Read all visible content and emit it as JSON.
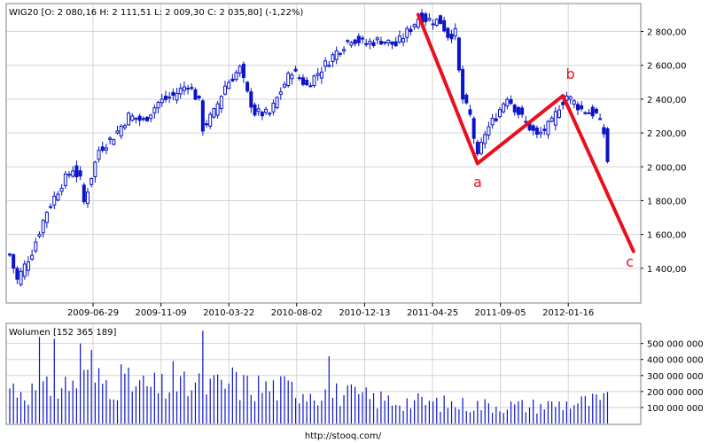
{
  "chart_data": [
    {
      "type": "candlestick",
      "title": "WIG20 [O: 2 080,16  H: 2 111,51  L: 2 009,30  C: 2 035,80] (-1,22%)",
      "ylim": [
        1200,
        2960
      ],
      "y_ticks": [
        1400,
        1600,
        1800,
        2000,
        2200,
        2400,
        2600,
        2800
      ],
      "y_tick_labels": [
        "1 400,00",
        "1 600,00",
        "1 800,00",
        "2 000,00",
        "2 200,00",
        "2 400,00",
        "2 600,00",
        "2 800,00"
      ],
      "x_tick_labels": [
        "2009-06-29",
        "2009-11-09",
        "2010-03-22",
        "2010-08-02",
        "2010-12-13",
        "2011-04-25",
        "2011-09-05",
        "2012-01-16"
      ],
      "grid": true,
      "price_path": [
        [
          0,
          1480
        ],
        [
          2,
          1330
        ],
        [
          6,
          1500
        ],
        [
          10,
          1740
        ],
        [
          14,
          1900
        ],
        [
          17,
          1990
        ],
        [
          19,
          1920
        ],
        [
          20,
          1790
        ],
        [
          24,
          2100
        ],
        [
          28,
          2180
        ],
        [
          32,
          2300
        ],
        [
          36,
          2270
        ],
        [
          40,
          2380
        ],
        [
          44,
          2420
        ],
        [
          48,
          2490
        ],
        [
          51,
          2380
        ],
        [
          52,
          2230
        ],
        [
          55,
          2320
        ],
        [
          58,
          2480
        ],
        [
          62,
          2580
        ],
        [
          64,
          2430
        ],
        [
          66,
          2320
        ],
        [
          70,
          2310
        ],
        [
          73,
          2450
        ],
        [
          76,
          2570
        ],
        [
          80,
          2480
        ],
        [
          84,
          2580
        ],
        [
          88,
          2680
        ],
        [
          92,
          2760
        ],
        [
          96,
          2730
        ],
        [
          100,
          2750
        ],
        [
          104,
          2720
        ],
        [
          108,
          2820
        ],
        [
          110,
          2880
        ],
        [
          113,
          2870
        ],
        [
          116,
          2860
        ],
        [
          118,
          2780
        ],
        [
          120,
          2790
        ],
        [
          121,
          2560
        ],
        [
          122,
          2400
        ],
        [
          124,
          2300
        ],
        [
          126,
          2050
        ],
        [
          128,
          2200
        ],
        [
          131,
          2300
        ],
        [
          134,
          2420
        ],
        [
          136,
          2350
        ],
        [
          139,
          2260
        ],
        [
          142,
          2180
        ],
        [
          146,
          2260
        ],
        [
          148,
          2360
        ],
        [
          150,
          2420
        ],
        [
          154,
          2340
        ],
        [
          158,
          2310
        ],
        [
          160,
          2200
        ],
        [
          161,
          2035
        ]
      ],
      "wave_lines": [
        {
          "from": [
            110,
            2900
          ],
          "to": [
            126,
            2020
          ]
        },
        {
          "from": [
            126,
            2020
          ],
          "to": [
            149,
            2420
          ]
        },
        {
          "from": [
            149,
            2420
          ],
          "to": [
            168,
            1500
          ]
        }
      ],
      "wave_labels": [
        {
          "text": "a",
          "x": 126,
          "y": 1880
        },
        {
          "text": "b",
          "x": 151,
          "y": 2520
        },
        {
          "text": "c",
          "x": 167,
          "y": 1410
        }
      ]
    },
    {
      "type": "bar",
      "title": "Wolumen [152 365 189]",
      "ylim": [
        0,
        620000000
      ],
      "y_ticks": [
        100000000,
        200000000,
        300000000,
        400000000,
        500000000
      ],
      "y_tick_labels": [
        "100 000 000",
        "200 000 000",
        "300 000 000",
        "400 000 000",
        "500 000 000"
      ],
      "volume_profile": [
        [
          0,
          230000000
        ],
        [
          8,
          190000000
        ],
        [
          20,
          280000000
        ],
        [
          40,
          220000000
        ],
        [
          60,
          240000000
        ],
        [
          80,
          210000000
        ],
        [
          100,
          150000000
        ],
        [
          120,
          120000000
        ],
        [
          140,
          110000000
        ],
        [
          165,
          150000000
        ]
      ],
      "volume_spikes": [
        {
          "x": 8,
          "value": 540000000
        },
        {
          "x": 12,
          "value": 530000000
        },
        {
          "x": 19,
          "value": 500000000
        },
        {
          "x": 22,
          "value": 460000000
        },
        {
          "x": 52,
          "value": 580000000
        },
        {
          "x": 44,
          "value": 390000000
        },
        {
          "x": 86,
          "value": 420000000
        },
        {
          "x": 30,
          "value": 370000000
        },
        {
          "x": 60,
          "value": 350000000
        }
      ]
    }
  ],
  "footer": {
    "url": "http://stooq.com/"
  },
  "colors": {
    "series": "#0a14c8",
    "wave": "#e8101e",
    "grid": "#d4d4d4",
    "frame": "#808080"
  }
}
